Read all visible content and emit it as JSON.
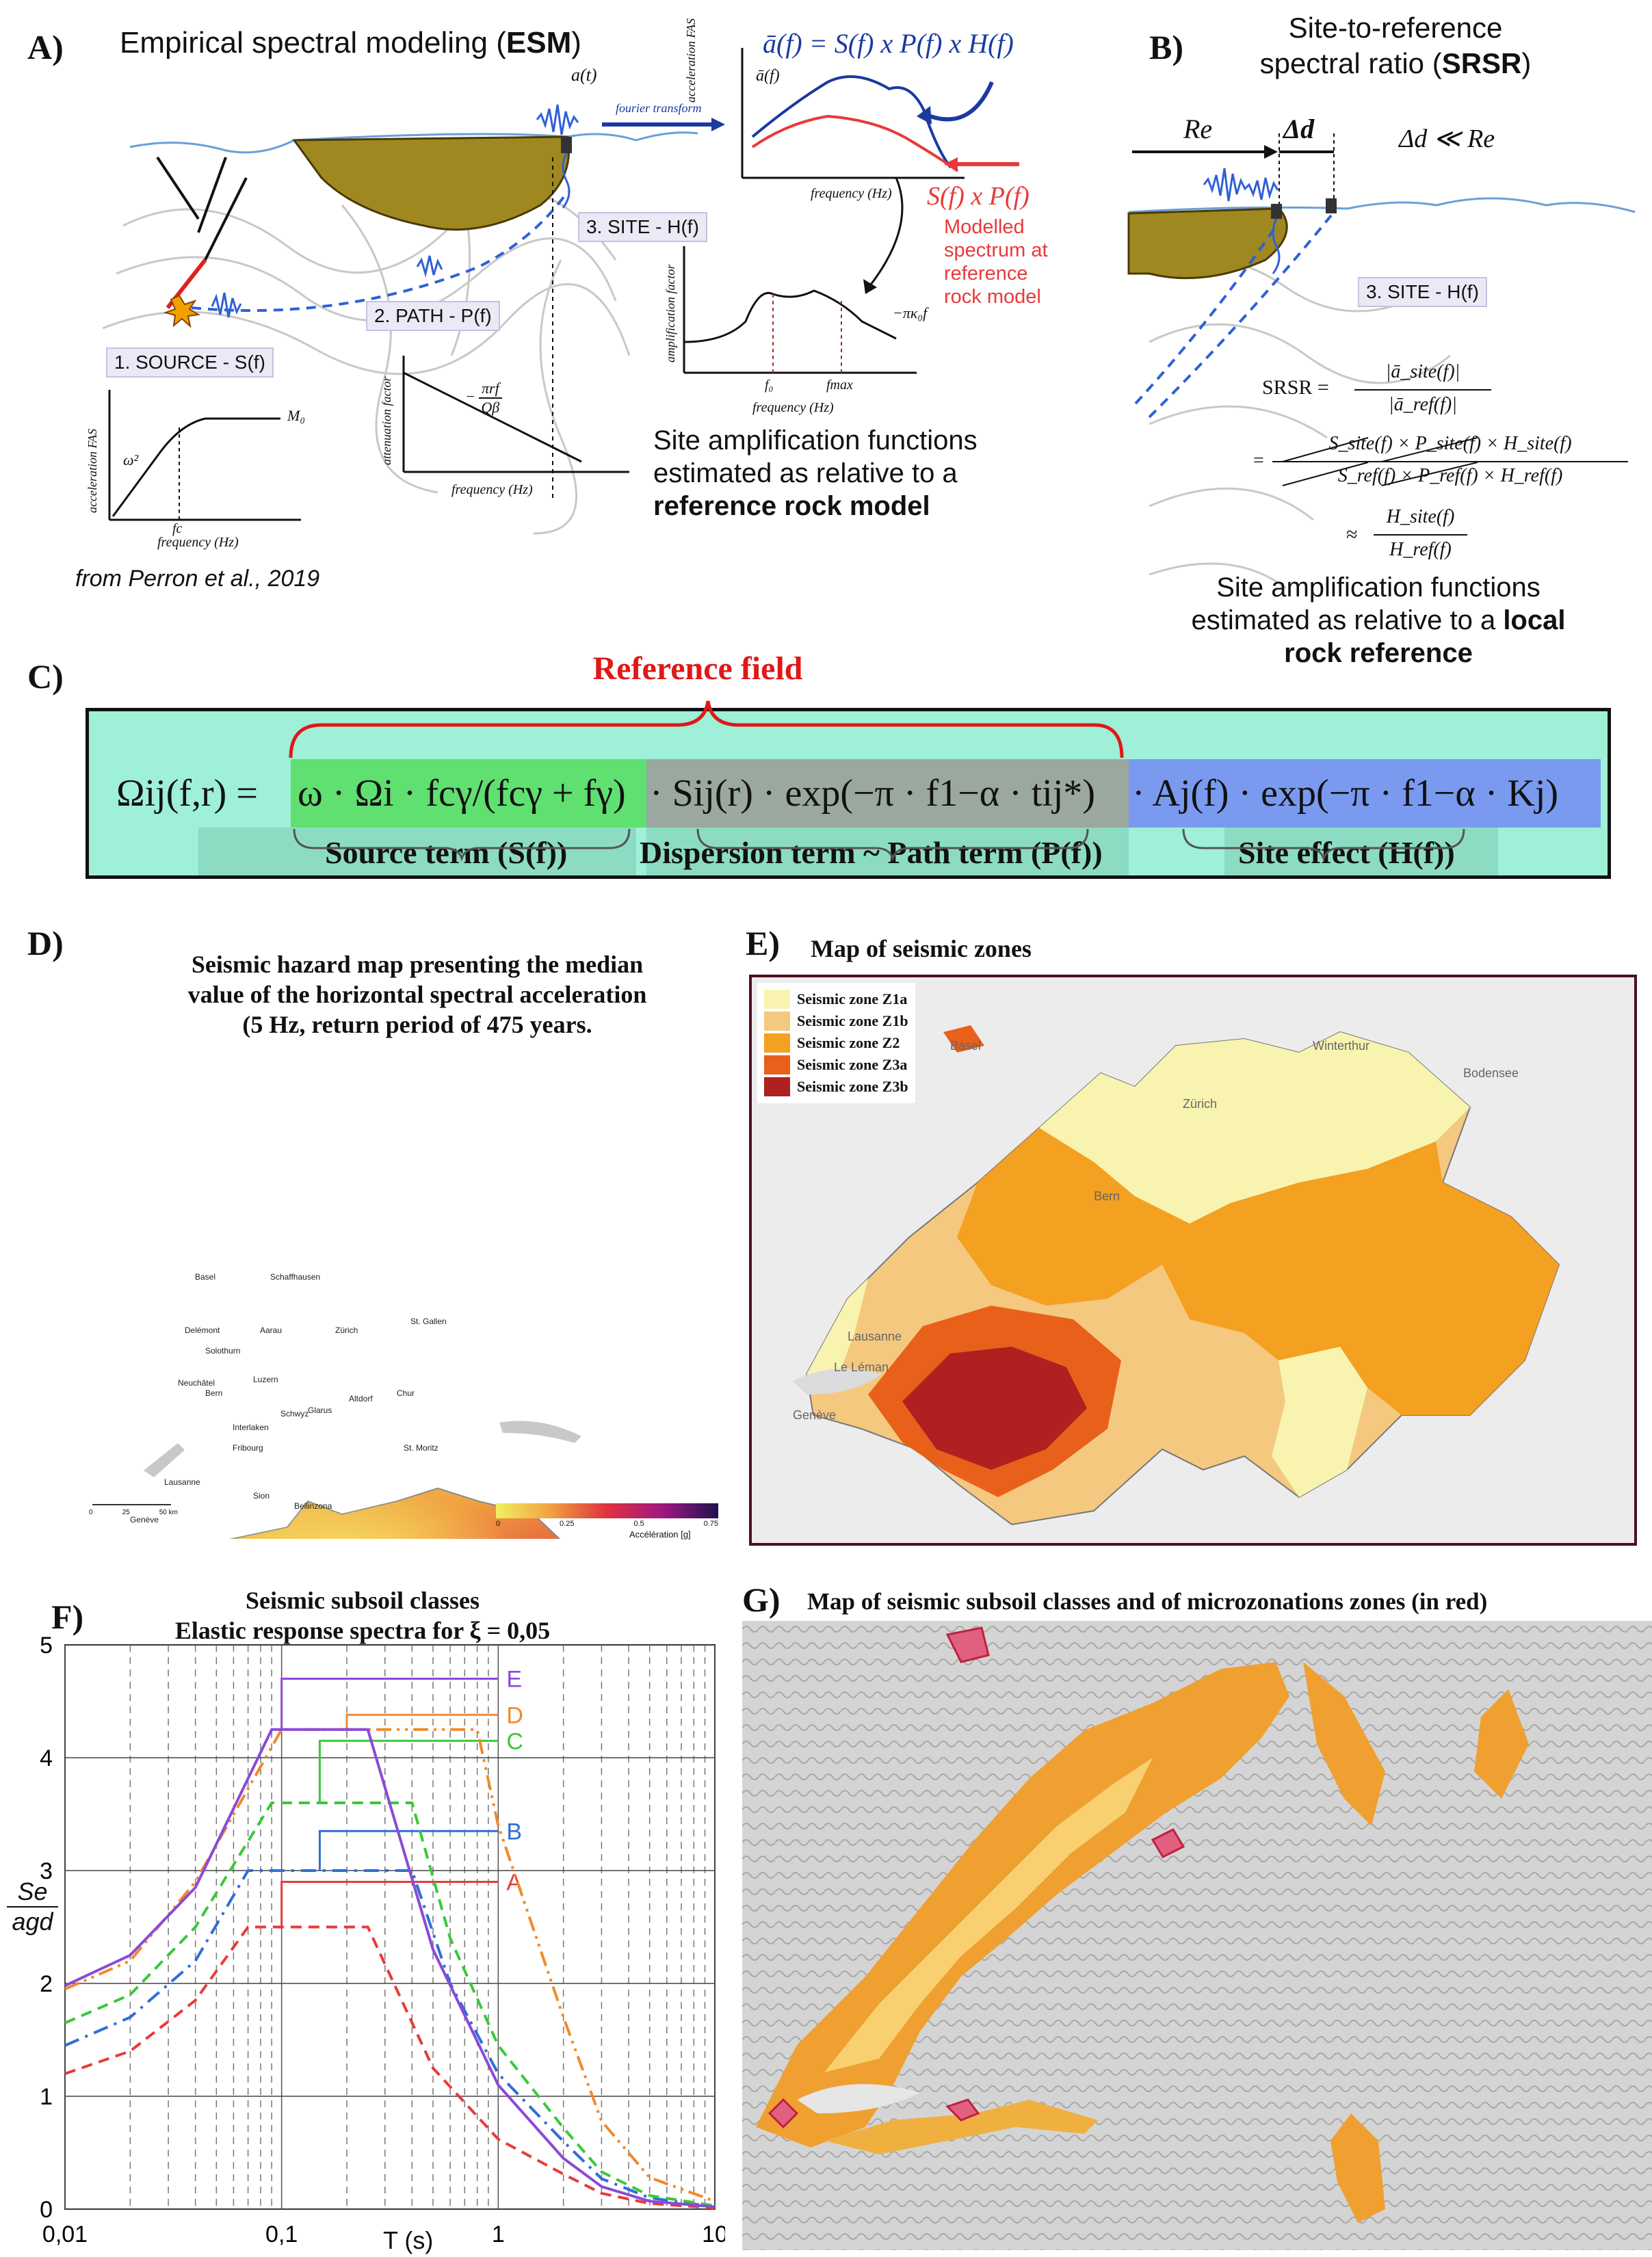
{
  "panelA": {
    "letter": "A)",
    "title_pre": "Empirical spectral modeling (",
    "title_bold": "ESM",
    "title_post": ")",
    "signal_label": "a(t)",
    "fourier_label": "fourier transform",
    "eq_top": "ā(f) = S(f) x P(f) x H(f)",
    "abar_label": "ā(f)",
    "spec_ylabel": "acceleration FAS",
    "spec_xlabel": "frequency (Hz)",
    "sp_label": "S(f) x P(f)",
    "modelled_text": [
      "Modelled",
      "spectrum at",
      "reference",
      "rock model"
    ],
    "site_box": "3. SITE - H(f)",
    "path_box": "2. PATH - P(f)",
    "source_box": "1. SOURCE - S(f)",
    "amp_ylabel": "amplification factor",
    "amp_xlabel": "frequency (Hz)",
    "amp_kappa": "−πκ₀f",
    "amp_f0": "f₀",
    "amp_fmax": "fmax",
    "att_ylabel": "attenuation factor",
    "att_xlabel": "frequency (Hz)",
    "att_formula_num": "πrf",
    "att_formula_den": "Qβ",
    "src_ylabel": "acceleration FAS",
    "src_xlabel": "frequency (Hz)",
    "src_omega": "ω²",
    "src_m0": "M₀",
    "src_fc": "fc",
    "site_amp_text": [
      "Site amplification functions",
      "estimated as relative to a"
    ],
    "site_amp_bold": "reference rock model",
    "credit": "from Perron et al., 2019"
  },
  "panelB": {
    "letter": "B)",
    "title_line1": "Site-to-reference",
    "title_line2_pre": "spectral ratio (",
    "title_line2_bold": "SRSR",
    "title_line2_post": ")",
    "re_label": "Re",
    "dd_label": "Δd",
    "dd_rel": "Δd ≪ Re",
    "site_box": "3. SITE - H(f)",
    "srsr_eq1_lhs": "SRSR =",
    "srsr_eq1_num": "|ā_site(f)|",
    "srsr_eq1_den": "|ā_ref(f)|",
    "srsr_eq2_num": "S_site(f) × P_site(f) × H_site(f)",
    "srsr_eq2_den": "S_ref(f) × P_ref(f) × H_ref(f)",
    "srsr_eq3_num": "H_site(f)",
    "srsr_eq3_den": "H_ref(f)",
    "site_amp_text": "Site amplification functions",
    "site_amp_text2": "estimated as relative to a",
    "site_amp_bold1": "local",
    "site_amp_bold2": "rock reference"
  },
  "panelC": {
    "letter": "C)",
    "reference_field": "Reference field",
    "omega_lhs": "Ωij(f,r) =",
    "source_expr": "ω · Ωi · fcγ/(fcγ + fγ)",
    "path_expr": "· Sij(r) · exp(−π · f1−α · tij*)",
    "site_expr": "· Aj(f) · exp(−π · f1−α · Kj)",
    "source_term": "Source term (S(f))",
    "path_term": "Dispersion term ~ Path term (P(f))",
    "site_term": "Site effect (H(f))",
    "colors": {
      "bg": "#9ff0d8",
      "source": "#5fe070",
      "path": "#9aa8a0",
      "site": "#7a9af0",
      "ref": "#e01818"
    }
  },
  "panelD": {
    "letter": "D)",
    "title": [
      "Seismic hazard map presenting the median",
      "value of  the horizontal spectral acceleration",
      "(5 Hz, return period of 475 years."
    ],
    "cities": [
      "Basel",
      "Schaffhausen",
      "Delémont",
      "Aarau",
      "Zürich",
      "St. Gallen",
      "Solothurn",
      "Neuchâtel",
      "Luzern",
      "Bern",
      "Glarus",
      "Altdorf",
      "Chur",
      "Interlaken",
      "Schwyz",
      "Lausanne",
      "Fribourg",
      "Sion",
      "Genève",
      "Bellinzona",
      "St. Moritz"
    ],
    "scale_ticks": [
      "0",
      "25",
      "50 km"
    ],
    "colorbar_ticks": [
      "0",
      "0.25",
      "0.5",
      "0.75"
    ],
    "colorbar_label": "Accélération [g]"
  },
  "panelE": {
    "letter": "E)",
    "title": "Map of seismic zones",
    "legend": [
      {
        "label": "Seismic zone Z1a",
        "color": "#f8f4b0"
      },
      {
        "label": "Seismic zone Z1b",
        "color": "#f5c880"
      },
      {
        "label": "Seismic zone Z2",
        "color": "#f4a020"
      },
      {
        "label": "Seismic zone Z3a",
        "color": "#e8601a"
      },
      {
        "label": "Seismic zone Z3b",
        "color": "#b02020"
      }
    ],
    "places": [
      "Basel",
      "Winterthur",
      "Zürich",
      "Bern",
      "Lausanne",
      "Le Léman",
      "Genève",
      "Bodensee"
    ]
  },
  "panelF": {
    "letter": "F)",
    "title_line1": "Seismic subsoil classes",
    "title_line2": "Elastic response spectra for ξ = 0,05",
    "ylabel_num": "Se",
    "ylabel_den": "agd",
    "xlabel": "T (s)"
  },
  "panelG": {
    "letter": "G)",
    "title": "Map of seismic subsoil classes and of microzonations zones (in red)"
  },
  "chart_data": {
    "type": "line",
    "title": "Seismic subsoil classes",
    "subtitle": "Elastic response spectra for ξ = 0,05",
    "xlabel": "T (s)",
    "ylabel": "Se / agd",
    "xscale": "log",
    "xlim": [
      0.01,
      10
    ],
    "ylim": [
      0,
      5
    ],
    "x_ticks": [
      "0,01",
      "0,1",
      "1",
      "10"
    ],
    "y_ticks": [
      "0",
      "1",
      "2",
      "3",
      "4",
      "5"
    ],
    "grid": true,
    "series": [
      {
        "name": "A",
        "color": "#e83a3a",
        "dash": "dashed",
        "x": [
          0.01,
          0.02,
          0.04,
          0.07,
          0.1,
          0.25,
          0.5,
          1,
          2,
          3,
          5,
          10
        ],
        "y": [
          1.2,
          1.4,
          1.85,
          2.5,
          2.5,
          2.5,
          1.25,
          0.62,
          0.31,
          0.14,
          0.05,
          0.01
        ]
      },
      {
        "name": "B",
        "color": "#2e6ed8",
        "dash": "dashdot",
        "x": [
          0.01,
          0.02,
          0.04,
          0.07,
          0.15,
          0.4,
          0.6,
          1,
          2,
          3,
          5,
          10
        ],
        "y": [
          1.45,
          1.7,
          2.2,
          3.0,
          3.0,
          3.0,
          2.0,
          1.2,
          0.6,
          0.27,
          0.1,
          0.02
        ]
      },
      {
        "name": "C",
        "color": "#3ac83a",
        "dash": "dashed",
        "x": [
          0.01,
          0.02,
          0.04,
          0.09,
          0.15,
          0.4,
          0.6,
          1,
          2,
          3,
          5,
          10
        ],
        "y": [
          1.65,
          1.9,
          2.5,
          3.6,
          3.6,
          3.6,
          2.4,
          1.45,
          0.72,
          0.33,
          0.12,
          0.03
        ]
      },
      {
        "name": "D",
        "color": "#f08a2a",
        "dash": "dashdotdot",
        "x": [
          0.01,
          0.02,
          0.04,
          0.1,
          0.2,
          0.8,
          1,
          2,
          3,
          5,
          10
        ],
        "y": [
          1.95,
          2.2,
          2.9,
          4.25,
          4.25,
          4.25,
          3.4,
          1.7,
          0.78,
          0.28,
          0.07
        ]
      },
      {
        "name": "E",
        "color": "#8a4ad8",
        "dash": "solid",
        "x": [
          0.01,
          0.02,
          0.04,
          0.09,
          0.1,
          0.25,
          0.5,
          1,
          2,
          3,
          5,
          10
        ],
        "y": [
          1.98,
          2.25,
          2.85,
          4.25,
          4.25,
          4.25,
          2.3,
          1.1,
          0.45,
          0.2,
          0.07,
          0.02
        ]
      }
    ]
  }
}
